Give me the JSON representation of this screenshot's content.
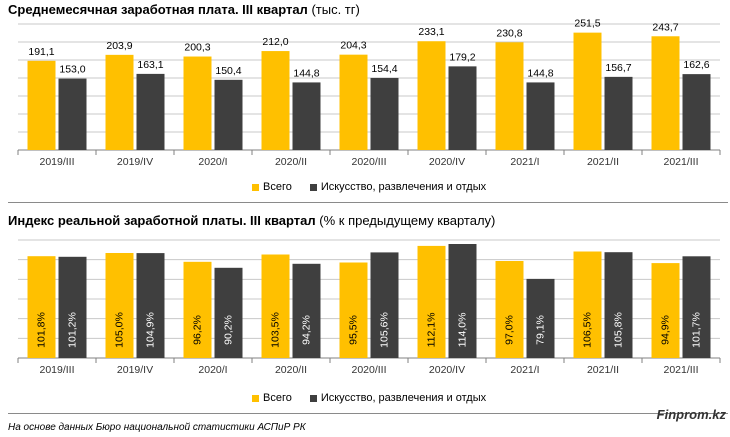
{
  "colors": {
    "all": "#FFC000",
    "arts": "#3F3F3F",
    "grid": "#C8C8C8",
    "axis": "#808080"
  },
  "chart_data": [
    {
      "type": "bar",
      "title": "Среднемесячная заработная плата. III квартал",
      "title_unit": "(тыс. тг)",
      "categories": [
        "2019/III",
        "2019/IV",
        "2020/I",
        "2020/II",
        "2020/III",
        "2020/IV",
        "2021/I",
        "2021/II",
        "2021/III"
      ],
      "series": [
        {
          "name": "Всего",
          "values": [
            191.1,
            203.9,
            200.3,
            212.0,
            204.3,
            233.1,
            230.8,
            251.5,
            243.7
          ],
          "labels": [
            "191,1",
            "203,9",
            "200,3",
            "212,0",
            "204,3",
            "233,1",
            "230,8",
            "251,5",
            "243,7"
          ]
        },
        {
          "name": "Искусство, развлечения и отдых",
          "values": [
            153.0,
            163.1,
            150.4,
            144.8,
            154.4,
            179.2,
            144.8,
            156.7,
            162.6
          ],
          "labels": [
            "153,0",
            "163,1",
            "150,4",
            "144,8",
            "154,4",
            "179,2",
            "144,8",
            "156,7",
            "162,6"
          ]
        }
      ],
      "ylim": [
        0,
        270
      ],
      "grid": true,
      "legend_position": "bottom"
    },
    {
      "type": "bar",
      "title": "Индекс реальной заработной платы. III квартал",
      "title_unit": "(% к предыдущему кварталу)",
      "categories": [
        "2019/III",
        "2019/IV",
        "2020/I",
        "2020/II",
        "2020/III",
        "2020/IV",
        "2021/I",
        "2021/II",
        "2021/III"
      ],
      "series": [
        {
          "name": "Всего",
          "values": [
            101.8,
            105.0,
            96.2,
            103.5,
            95.5,
            112.1,
            97.0,
            106.5,
            94.9
          ],
          "labels": [
            "101,8%",
            "105,0%",
            "96,2%",
            "103,5%",
            "95,5%",
            "112,1%",
            "97,0%",
            "106,5%",
            "94,9%"
          ]
        },
        {
          "name": "Искусство, развлечения и отдых",
          "values": [
            101.2,
            104.9,
            90.2,
            94.2,
            105.6,
            114.0,
            79.1,
            105.8,
            101.7
          ],
          "labels": [
            "101,2%",
            "104,9%",
            "90,2%",
            "94,2%",
            "105,6%",
            "114,0%",
            "79,1%",
            "105,8%",
            "101,7%"
          ]
        }
      ],
      "ylim": [
        0,
        118
      ],
      "grid": true,
      "legend_position": "bottom"
    }
  ],
  "footnote": "На основе данных Бюро национальной статистики АСПиР РК",
  "brand": "Finprom.kz"
}
